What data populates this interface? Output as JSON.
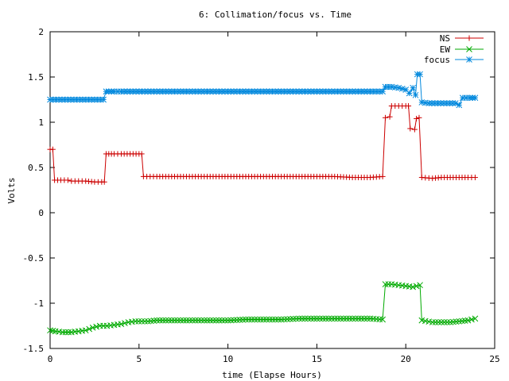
{
  "chart_data": {
    "type": "line",
    "title": "6: Collimation/focus vs. Time",
    "xlabel": "time (Elapse Hours)",
    "ylabel": "Volts",
    "xlim": [
      0,
      25
    ],
    "ylim": [
      -1.5,
      2
    ],
    "x_ticks": [
      "0",
      "5",
      "10",
      "15",
      "20",
      "25"
    ],
    "y_ticks": [
      "-1.5",
      "-1",
      "-0.5",
      "0",
      "0.5",
      "1",
      "1.5",
      "2"
    ],
    "grid": false,
    "legend_position": "top-right",
    "series": [
      {
        "name": "NS",
        "color": "#cc0000",
        "marker": "plus",
        "points": [
          [
            0.0,
            0.7
          ],
          [
            0.15,
            0.7
          ],
          [
            0.25,
            0.36
          ],
          [
            0.6,
            0.36
          ],
          [
            1.0,
            0.36
          ],
          [
            1.2,
            0.35
          ],
          [
            1.6,
            0.35
          ],
          [
            2.0,
            0.35
          ],
          [
            2.5,
            0.34
          ],
          [
            2.9,
            0.34
          ],
          [
            3.05,
            0.34
          ],
          [
            3.15,
            0.65
          ],
          [
            3.6,
            0.65
          ],
          [
            4.0,
            0.65
          ],
          [
            4.5,
            0.65
          ],
          [
            5.0,
            0.65
          ],
          [
            5.15,
            0.65
          ],
          [
            5.25,
            0.4
          ],
          [
            6.0,
            0.4
          ],
          [
            7.0,
            0.4
          ],
          [
            8.0,
            0.4
          ],
          [
            9.0,
            0.4
          ],
          [
            10.0,
            0.4
          ],
          [
            11.0,
            0.4
          ],
          [
            12.0,
            0.4
          ],
          [
            13.0,
            0.4
          ],
          [
            14.0,
            0.4
          ],
          [
            15.0,
            0.4
          ],
          [
            16.0,
            0.4
          ],
          [
            17.0,
            0.39
          ],
          [
            18.0,
            0.39
          ],
          [
            18.7,
            0.4
          ],
          [
            18.85,
            1.05
          ],
          [
            19.1,
            1.06
          ],
          [
            19.2,
            1.18
          ],
          [
            19.6,
            1.18
          ],
          [
            20.0,
            1.18
          ],
          [
            20.15,
            1.18
          ],
          [
            20.25,
            0.93
          ],
          [
            20.5,
            0.92
          ],
          [
            20.6,
            1.04
          ],
          [
            20.75,
            1.05
          ],
          [
            20.9,
            0.39
          ],
          [
            21.5,
            0.38
          ],
          [
            22.0,
            0.39
          ],
          [
            22.5,
            0.39
          ],
          [
            23.0,
            0.39
          ],
          [
            23.5,
            0.39
          ],
          [
            23.9,
            0.39
          ]
        ]
      },
      {
        "name": "EW",
        "color": "#00aa00",
        "marker": "cross",
        "points": [
          [
            0.0,
            -1.3
          ],
          [
            0.3,
            -1.31
          ],
          [
            0.7,
            -1.32
          ],
          [
            1.2,
            -1.32
          ],
          [
            1.6,
            -1.31
          ],
          [
            2.0,
            -1.3
          ],
          [
            2.4,
            -1.27
          ],
          [
            2.8,
            -1.25
          ],
          [
            3.2,
            -1.25
          ],
          [
            3.6,
            -1.24
          ],
          [
            4.0,
            -1.23
          ],
          [
            4.4,
            -1.21
          ],
          [
            4.8,
            -1.2
          ],
          [
            5.5,
            -1.2
          ],
          [
            6.0,
            -1.19
          ],
          [
            7.0,
            -1.19
          ],
          [
            8.0,
            -1.19
          ],
          [
            9.0,
            -1.19
          ],
          [
            10.0,
            -1.19
          ],
          [
            11.0,
            -1.18
          ],
          [
            12.0,
            -1.18
          ],
          [
            13.0,
            -1.18
          ],
          [
            14.0,
            -1.17
          ],
          [
            15.0,
            -1.17
          ],
          [
            16.0,
            -1.17
          ],
          [
            17.0,
            -1.17
          ],
          [
            18.0,
            -1.17
          ],
          [
            18.7,
            -1.18
          ],
          [
            18.85,
            -0.79
          ],
          [
            19.2,
            -0.79
          ],
          [
            19.6,
            -0.8
          ],
          [
            20.0,
            -0.81
          ],
          [
            20.4,
            -0.82
          ],
          [
            20.8,
            -0.8
          ],
          [
            20.9,
            -1.19
          ],
          [
            21.5,
            -1.21
          ],
          [
            22.0,
            -1.21
          ],
          [
            22.5,
            -1.21
          ],
          [
            23.0,
            -1.2
          ],
          [
            23.5,
            -1.19
          ],
          [
            23.9,
            -1.17
          ]
        ]
      },
      {
        "name": "focus",
        "color": "#0088dd",
        "marker": "star",
        "points": [
          [
            0.0,
            1.25
          ],
          [
            0.5,
            1.25
          ],
          [
            1.0,
            1.25
          ],
          [
            1.5,
            1.25
          ],
          [
            2.0,
            1.25
          ],
          [
            2.5,
            1.25
          ],
          [
            3.0,
            1.25
          ],
          [
            3.15,
            1.34
          ],
          [
            3.6,
            1.34
          ],
          [
            4.0,
            1.34
          ],
          [
            4.5,
            1.34
          ],
          [
            5.0,
            1.34
          ],
          [
            6.0,
            1.34
          ],
          [
            7.0,
            1.34
          ],
          [
            8.0,
            1.34
          ],
          [
            9.0,
            1.34
          ],
          [
            10.0,
            1.34
          ],
          [
            11.0,
            1.34
          ],
          [
            12.0,
            1.34
          ],
          [
            13.0,
            1.34
          ],
          [
            14.0,
            1.34
          ],
          [
            15.0,
            1.34
          ],
          [
            16.0,
            1.34
          ],
          [
            17.0,
            1.34
          ],
          [
            18.0,
            1.34
          ],
          [
            18.7,
            1.34
          ],
          [
            18.85,
            1.39
          ],
          [
            19.2,
            1.39
          ],
          [
            19.6,
            1.38
          ],
          [
            20.0,
            1.36
          ],
          [
            20.2,
            1.32
          ],
          [
            20.4,
            1.38
          ],
          [
            20.55,
            1.3
          ],
          [
            20.65,
            1.53
          ],
          [
            20.8,
            1.53
          ],
          [
            20.9,
            1.22
          ],
          [
            21.3,
            1.21
          ],
          [
            21.8,
            1.21
          ],
          [
            22.3,
            1.21
          ],
          [
            22.8,
            1.21
          ],
          [
            23.0,
            1.19
          ],
          [
            23.2,
            1.27
          ],
          [
            23.6,
            1.27
          ],
          [
            23.9,
            1.27
          ]
        ]
      }
    ]
  }
}
